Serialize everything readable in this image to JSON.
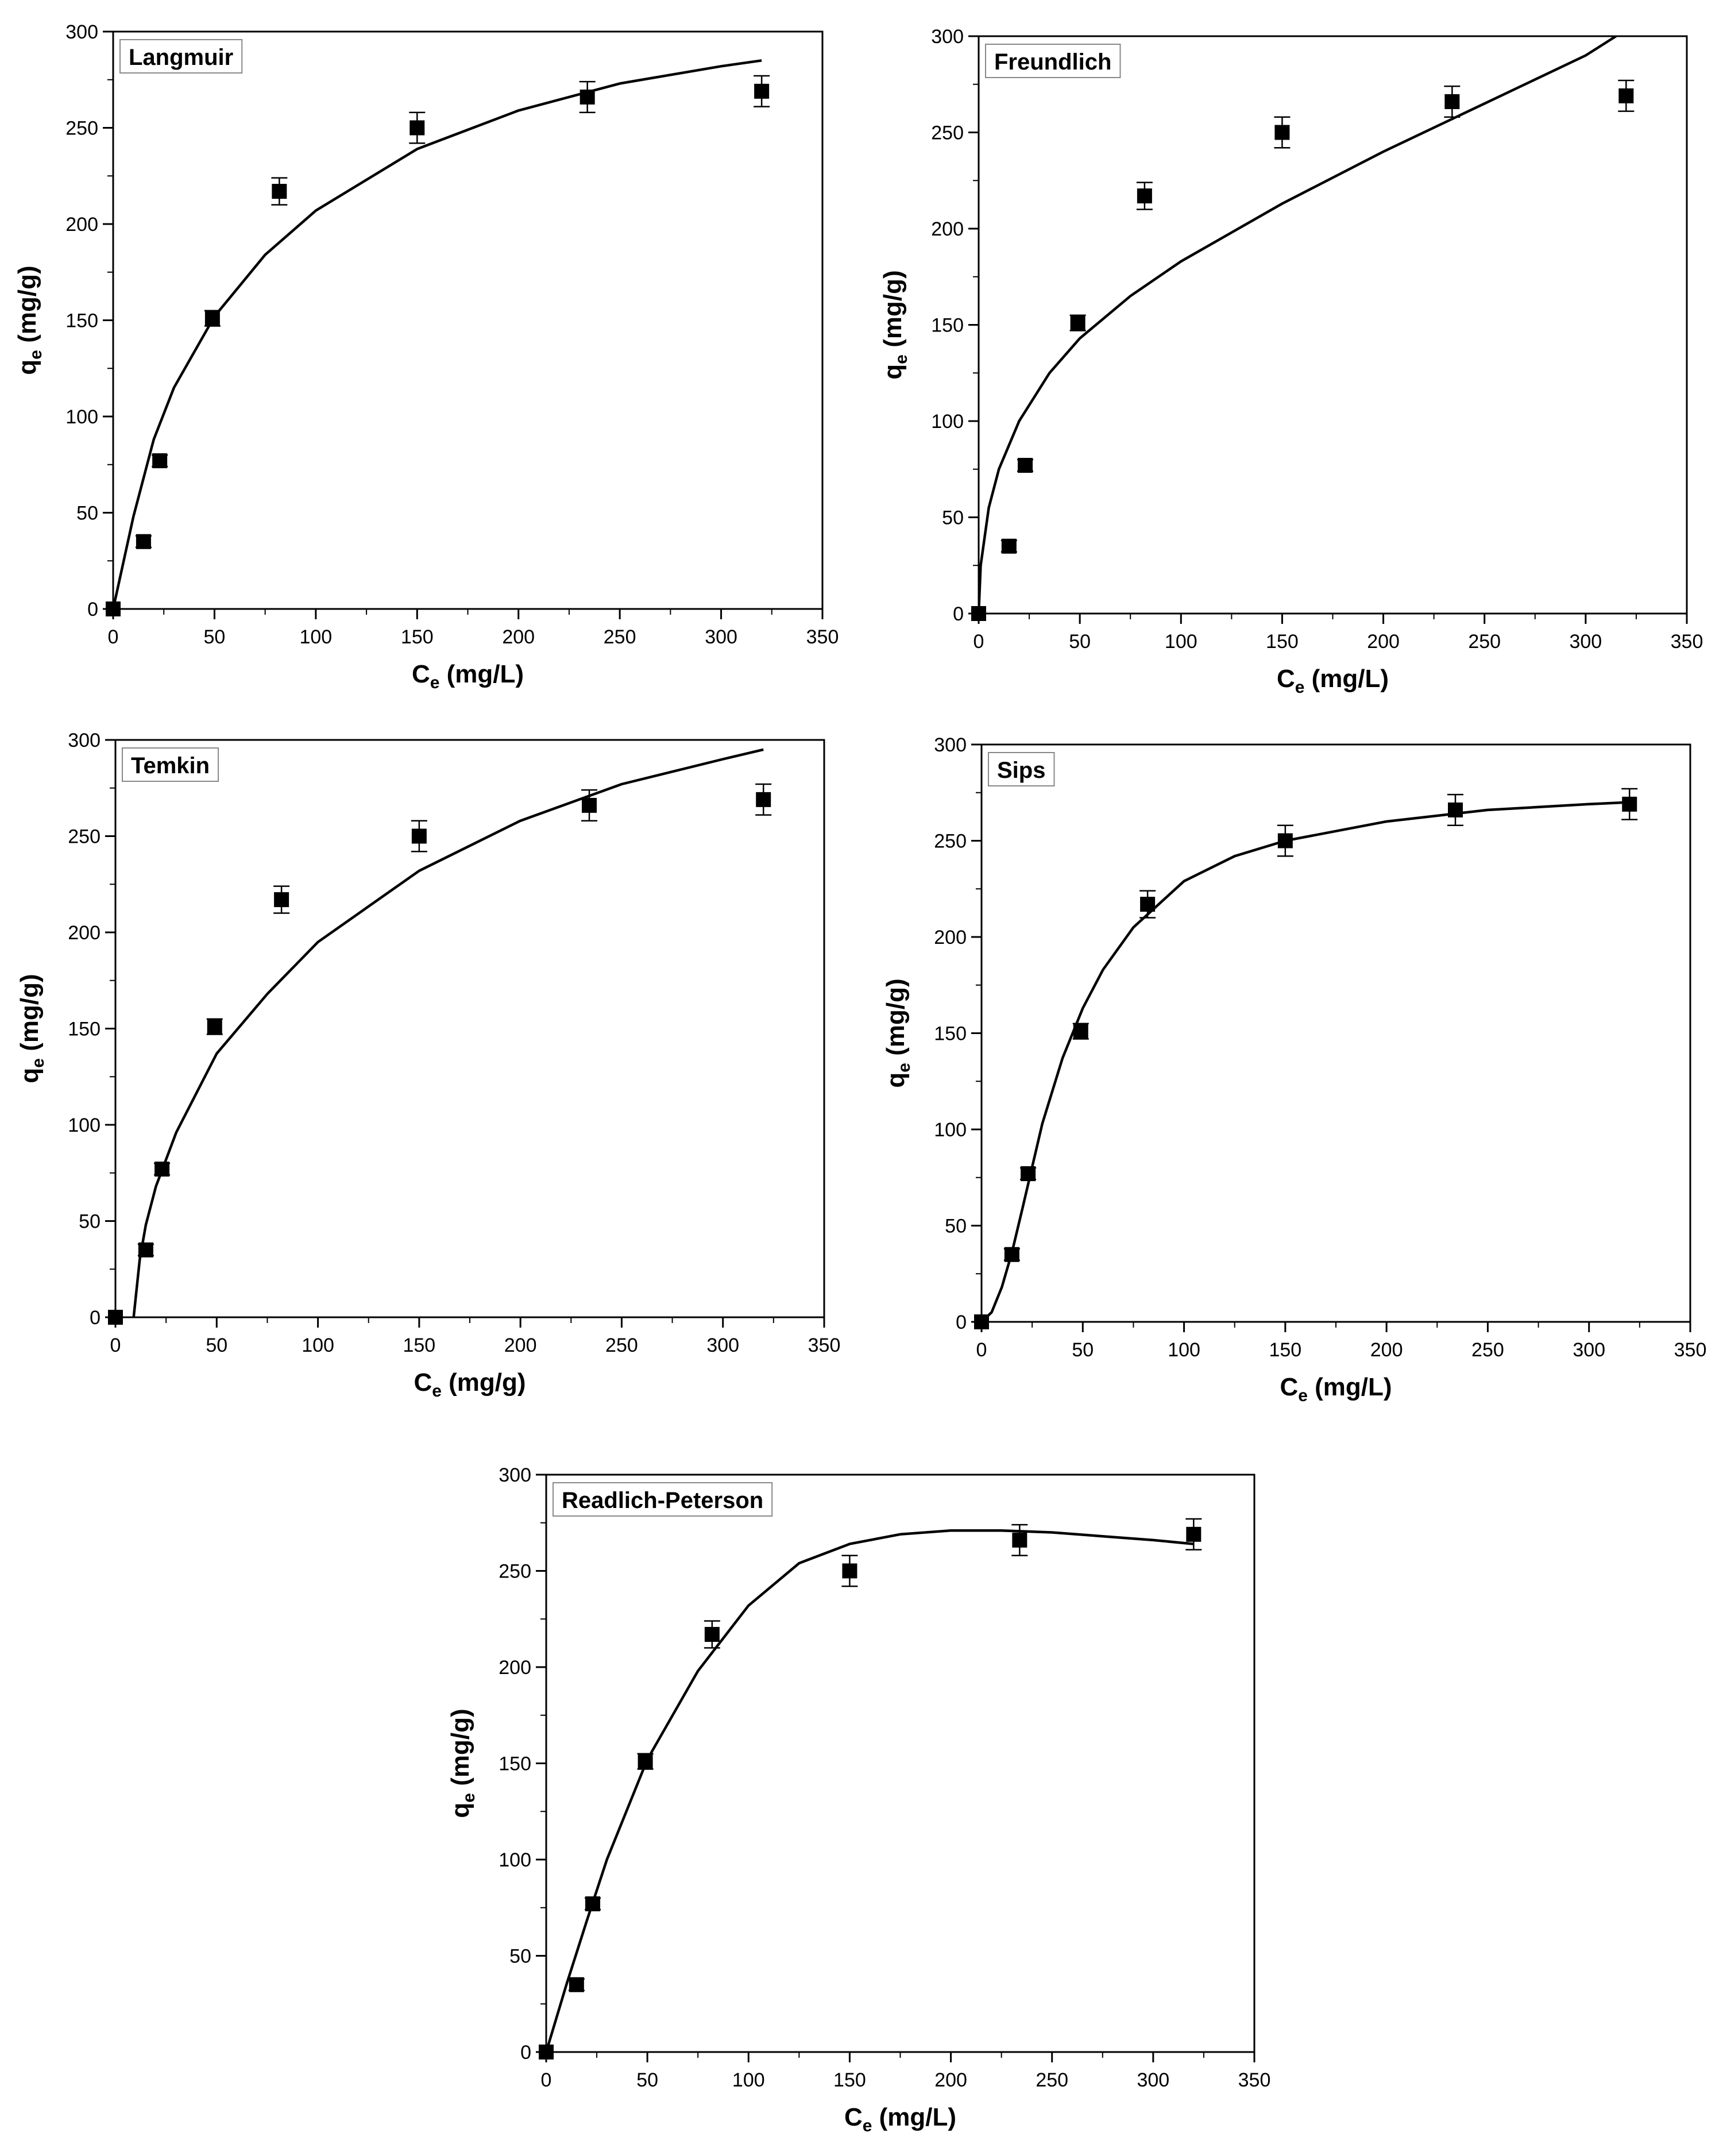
{
  "chart_data": [
    {
      "type": "scatter",
      "panel_label": "Langmuir",
      "xlabel": {
        "main": "C",
        "sub": "e",
        "unit": "(mg/L)"
      },
      "ylabel": {
        "main": "q",
        "sub": "e",
        "unit": "(mg/g)"
      },
      "xlim": [
        0,
        350
      ],
      "ylim": [
        0,
        300
      ],
      "xticks": [
        "0",
        "50",
        "100",
        "150",
        "200",
        "250",
        "300",
        "350"
      ],
      "yticks": [
        "0",
        "50",
        "100",
        "150",
        "200",
        "250",
        "300"
      ],
      "points": [
        {
          "x": 0,
          "y": 0,
          "err": 0
        },
        {
          "x": 15,
          "y": 35,
          "err": 3
        },
        {
          "x": 23,
          "y": 77,
          "err": 3
        },
        {
          "x": 49,
          "y": 151,
          "err": 4
        },
        {
          "x": 82,
          "y": 217,
          "err": 7
        },
        {
          "x": 150,
          "y": 250,
          "err": 8
        },
        {
          "x": 234,
          "y": 266,
          "err": 8
        },
        {
          "x": 320,
          "y": 269,
          "err": 8
        }
      ],
      "fit": [
        [
          0,
          0
        ],
        [
          10,
          48
        ],
        [
          20,
          88
        ],
        [
          30,
          115
        ],
        [
          50,
          152
        ],
        [
          75,
          184
        ],
        [
          100,
          207
        ],
        [
          150,
          239
        ],
        [
          200,
          259
        ],
        [
          250,
          273
        ],
        [
          300,
          282
        ],
        [
          320,
          285
        ]
      ]
    },
    {
      "type": "scatter",
      "panel_label": "Freundlich",
      "xlabel": {
        "main": "C",
        "sub": "e",
        "unit": "(mg/L)"
      },
      "ylabel": {
        "main": "q",
        "sub": "e",
        "unit": "(mg/g)"
      },
      "xlim": [
        0,
        350
      ],
      "ylim": [
        0,
        300
      ],
      "xticks": [
        "0",
        "50",
        "100",
        "150",
        "200",
        "250",
        "300",
        "350"
      ],
      "yticks": [
        "0",
        "50",
        "100",
        "150",
        "200",
        "250",
        "300"
      ],
      "points": [
        {
          "x": 0,
          "y": 0,
          "err": 0
        },
        {
          "x": 15,
          "y": 35,
          "err": 3
        },
        {
          "x": 23,
          "y": 77,
          "err": 3
        },
        {
          "x": 49,
          "y": 151,
          "err": 4
        },
        {
          "x": 82,
          "y": 217,
          "err": 7
        },
        {
          "x": 150,
          "y": 250,
          "err": 8
        },
        {
          "x": 234,
          "y": 266,
          "err": 8
        },
        {
          "x": 320,
          "y": 269,
          "err": 8
        }
      ],
      "fit": [
        [
          0,
          0
        ],
        [
          1,
          25
        ],
        [
          5,
          55
        ],
        [
          10,
          75
        ],
        [
          20,
          100
        ],
        [
          35,
          125
        ],
        [
          50,
          143
        ],
        [
          75,
          165
        ],
        [
          100,
          183
        ],
        [
          150,
          213
        ],
        [
          200,
          240
        ],
        [
          250,
          265
        ],
        [
          300,
          290
        ],
        [
          315,
          300
        ]
      ]
    },
    {
      "type": "scatter",
      "panel_label": "Temkin",
      "xlabel": {
        "main": "C",
        "sub": "e",
        "unit": "(mg/g)"
      },
      "ylabel": {
        "main": "q",
        "sub": "e",
        "unit": "(mg/g)"
      },
      "xlim": [
        0,
        350
      ],
      "ylim": [
        0,
        300
      ],
      "xticks": [
        "0",
        "50",
        "100",
        "150",
        "200",
        "250",
        "300",
        "350"
      ],
      "yticks": [
        "0",
        "50",
        "100",
        "150",
        "200",
        "250",
        "300"
      ],
      "points": [
        {
          "x": 0,
          "y": 0,
          "err": 0
        },
        {
          "x": 15,
          "y": 35,
          "err": 3
        },
        {
          "x": 23,
          "y": 77,
          "err": 3
        },
        {
          "x": 49,
          "y": 151,
          "err": 4
        },
        {
          "x": 82,
          "y": 217,
          "err": 7
        },
        {
          "x": 150,
          "y": 250,
          "err": 8
        },
        {
          "x": 234,
          "y": 266,
          "err": 8
        },
        {
          "x": 320,
          "y": 269,
          "err": 8
        }
      ],
      "fit": [
        [
          9,
          0
        ],
        [
          12,
          30
        ],
        [
          15,
          48
        ],
        [
          20,
          68
        ],
        [
          30,
          96
        ],
        [
          50,
          137
        ],
        [
          75,
          168
        ],
        [
          100,
          195
        ],
        [
          150,
          232
        ],
        [
          200,
          258
        ],
        [
          250,
          277
        ],
        [
          300,
          290
        ],
        [
          320,
          295
        ]
      ]
    },
    {
      "type": "scatter",
      "panel_label": "Sips",
      "xlabel": {
        "main": "C",
        "sub": "e",
        "unit": "(mg/L)"
      },
      "ylabel": {
        "main": "q",
        "sub": "e",
        "unit": "(mg/g)"
      },
      "xlim": [
        0,
        350
      ],
      "ylim": [
        0,
        300
      ],
      "xticks": [
        "0",
        "50",
        "100",
        "150",
        "200",
        "250",
        "300",
        "350"
      ],
      "yticks": [
        "0",
        "50",
        "100",
        "150",
        "200",
        "250",
        "300"
      ],
      "points": [
        {
          "x": 0,
          "y": 0,
          "err": 0
        },
        {
          "x": 15,
          "y": 35,
          "err": 3
        },
        {
          "x": 23,
          "y": 77,
          "err": 3
        },
        {
          "x": 49,
          "y": 151,
          "err": 4
        },
        {
          "x": 82,
          "y": 217,
          "err": 7
        },
        {
          "x": 150,
          "y": 250,
          "err": 8
        },
        {
          "x": 234,
          "y": 266,
          "err": 8
        },
        {
          "x": 320,
          "y": 269,
          "err": 8
        }
      ],
      "fit": [
        [
          0,
          0
        ],
        [
          5,
          5
        ],
        [
          10,
          18
        ],
        [
          15,
          36
        ],
        [
          20,
          58
        ],
        [
          30,
          103
        ],
        [
          40,
          137
        ],
        [
          50,
          163
        ],
        [
          60,
          183
        ],
        [
          75,
          205
        ],
        [
          100,
          229
        ],
        [
          125,
          242
        ],
        [
          150,
          250
        ],
        [
          200,
          260
        ],
        [
          250,
          266
        ],
        [
          300,
          269
        ],
        [
          320,
          270
        ]
      ]
    },
    {
      "type": "scatter",
      "panel_label": "Readlich-Peterson",
      "xlabel": {
        "main": "C",
        "sub": "e",
        "unit": "(mg/L)"
      },
      "ylabel": {
        "main": "q",
        "sub": "e",
        "unit": "(mg/g)"
      },
      "xlim": [
        0,
        350
      ],
      "ylim": [
        0,
        300
      ],
      "xticks": [
        "0",
        "50",
        "100",
        "150",
        "200",
        "250",
        "300",
        "350"
      ],
      "yticks": [
        "0",
        "50",
        "100",
        "150",
        "200",
        "250",
        "300"
      ],
      "points": [
        {
          "x": 0,
          "y": 0,
          "err": 0
        },
        {
          "x": 15,
          "y": 35,
          "err": 3
        },
        {
          "x": 23,
          "y": 77,
          "err": 3
        },
        {
          "x": 49,
          "y": 151,
          "err": 4
        },
        {
          "x": 82,
          "y": 217,
          "err": 7
        },
        {
          "x": 150,
          "y": 250,
          "err": 8
        },
        {
          "x": 234,
          "y": 266,
          "err": 8
        },
        {
          "x": 320,
          "y": 269,
          "err": 8
        }
      ],
      "fit": [
        [
          0,
          0
        ],
        [
          10,
          35
        ],
        [
          20,
          68
        ],
        [
          30,
          100
        ],
        [
          50,
          152
        ],
        [
          75,
          198
        ],
        [
          100,
          232
        ],
        [
          125,
          254
        ],
        [
          150,
          264
        ],
        [
          175,
          269
        ],
        [
          200,
          271
        ],
        [
          225,
          271
        ],
        [
          250,
          270
        ],
        [
          275,
          268
        ],
        [
          300,
          266
        ],
        [
          320,
          264
        ]
      ]
    }
  ]
}
